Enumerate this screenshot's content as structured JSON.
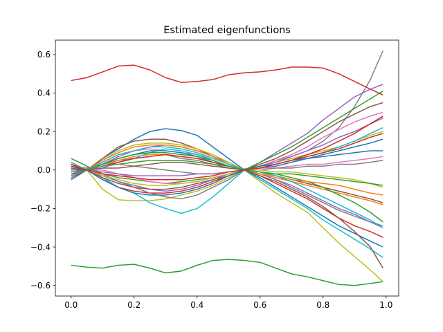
{
  "chart_data": {
    "type": "line",
    "title": "Estimated eigenfunctions",
    "xlabel": "",
    "ylabel": "",
    "xlim": [
      -0.05,
      1.04
    ],
    "ylim": [
      -0.655,
      0.675
    ],
    "xticks": [
      "0.0",
      "0.2",
      "0.4",
      "0.6",
      "0.8",
      "1.0"
    ],
    "xtick_values": [
      0.0,
      0.2,
      0.4,
      0.6,
      0.8,
      1.0
    ],
    "yticks": [
      "−0.6",
      "−0.4",
      "−0.2",
      "0.0",
      "0.2",
      "0.4",
      "0.6"
    ],
    "ytick_values": [
      -0.6,
      -0.4,
      -0.2,
      0.0,
      0.2,
      0.4,
      0.6
    ],
    "grid": false,
    "legend": "none",
    "x": [
      0.0,
      0.05,
      0.1,
      0.15,
      0.2,
      0.25,
      0.3,
      0.35,
      0.4,
      0.45,
      0.5,
      0.55,
      0.6,
      0.65,
      0.7,
      0.75,
      0.8,
      0.85,
      0.9,
      0.95,
      0.99
    ],
    "palette": [
      "#1f77b4",
      "#ff7f0e",
      "#2ca02c",
      "#d62728",
      "#9467bd",
      "#8c564b",
      "#e377c2",
      "#7f7f7f",
      "#bcbd22",
      "#17becf"
    ],
    "series": [
      {
        "color": "#d62728",
        "values": [
          0.465,
          0.48,
          0.51,
          0.54,
          0.545,
          0.52,
          0.48,
          0.455,
          0.46,
          0.47,
          0.495,
          0.505,
          0.51,
          0.52,
          0.535,
          0.535,
          0.53,
          0.5,
          0.46,
          0.42,
          0.39
        ]
      },
      {
        "color": "#2ca02c",
        "values": [
          -0.495,
          -0.505,
          -0.51,
          -0.495,
          -0.49,
          -0.51,
          -0.535,
          -0.525,
          -0.495,
          -0.47,
          -0.465,
          -0.47,
          -0.48,
          -0.51,
          -0.54,
          -0.555,
          -0.575,
          -0.595,
          -0.6,
          -0.59,
          -0.58
        ]
      },
      {
        "color": "#7f7f7f",
        "values": [
          0.02,
          0.01,
          0.03,
          0.05,
          0.06,
          0.07,
          0.08,
          0.06,
          0.05,
          0.03,
          0.02,
          0.005,
          0.02,
          0.05,
          0.07,
          0.1,
          0.15,
          0.22,
          0.33,
          0.47,
          0.62
        ]
      },
      {
        "color": "#9467bd",
        "values": [
          -0.01,
          0.0,
          0.03,
          0.07,
          0.1,
          0.12,
          0.13,
          0.12,
          0.1,
          0.07,
          0.04,
          0.0,
          0.04,
          0.09,
          0.14,
          0.19,
          0.26,
          0.32,
          0.38,
          0.42,
          0.445
        ]
      },
      {
        "color": "#bcbd22",
        "values": [
          0.02,
          0.0,
          -0.1,
          -0.155,
          -0.16,
          -0.16,
          -0.15,
          -0.13,
          -0.11,
          -0.08,
          -0.04,
          0.0,
          -0.06,
          -0.12,
          -0.17,
          -0.22,
          -0.3,
          -0.38,
          -0.45,
          -0.52,
          -0.58
        ]
      },
      {
        "color": "#17becf",
        "values": [
          -0.03,
          0.01,
          -0.04,
          -0.09,
          -0.12,
          -0.17,
          -0.2,
          -0.225,
          -0.2,
          -0.14,
          -0.07,
          0.0,
          -0.05,
          -0.1,
          -0.15,
          -0.2,
          -0.26,
          -0.31,
          -0.36,
          -0.41,
          -0.455
        ]
      },
      {
        "color": "#1f77b4",
        "values": [
          -0.05,
          0.0,
          0.06,
          0.11,
          0.16,
          0.2,
          0.215,
          0.205,
          0.18,
          0.12,
          0.06,
          0.0,
          -0.04,
          -0.09,
          -0.14,
          -0.19,
          -0.24,
          -0.29,
          -0.33,
          -0.37,
          -0.4
        ]
      },
      {
        "color": "#8c564b",
        "values": [
          0.03,
          0.0,
          0.06,
          0.12,
          0.15,
          0.16,
          0.16,
          0.14,
          0.11,
          0.07,
          0.03,
          0.0,
          0.03,
          0.06,
          0.1,
          0.15,
          0.2,
          0.25,
          0.29,
          0.33,
          0.35
        ]
      },
      {
        "color": "#2ca02c",
        "values": [
          0.06,
          0.02,
          -0.02,
          -0.04,
          -0.05,
          -0.06,
          -0.07,
          -0.06,
          -0.05,
          -0.04,
          -0.02,
          0.0,
          0.04,
          0.08,
          0.12,
          0.17,
          0.22,
          0.27,
          0.32,
          0.37,
          0.41
        ]
      },
      {
        "color": "#d62728",
        "values": [
          -0.02,
          0.0,
          -0.05,
          -0.09,
          -0.11,
          -0.12,
          -0.12,
          -0.11,
          -0.09,
          -0.06,
          -0.03,
          0.0,
          -0.03,
          -0.07,
          -0.11,
          -0.15,
          -0.2,
          -0.25,
          -0.29,
          -0.32,
          -0.35
        ]
      },
      {
        "color": "#e377c2",
        "values": [
          0.01,
          0.0,
          0.04,
          0.08,
          0.1,
          0.11,
          0.1,
          0.09,
          0.08,
          0.06,
          0.03,
          0.0,
          0.02,
          0.05,
          0.08,
          0.12,
          0.17,
          0.21,
          0.25,
          0.28,
          0.3
        ]
      },
      {
        "color": "#ff7f0e",
        "values": [
          -0.03,
          0.0,
          0.02,
          0.05,
          0.07,
          0.08,
          0.08,
          0.07,
          0.06,
          0.04,
          0.02,
          0.0,
          -0.02,
          -0.04,
          -0.06,
          -0.08,
          -0.1,
          -0.12,
          -0.14,
          -0.16,
          -0.18
        ]
      },
      {
        "color": "#7f7f7f",
        "values": [
          0.0,
          0.0,
          -0.02,
          -0.06,
          -0.09,
          -0.12,
          -0.14,
          -0.15,
          -0.13,
          -0.09,
          -0.05,
          0.0,
          -0.02,
          -0.05,
          -0.09,
          -0.13,
          -0.17,
          -0.21,
          -0.24,
          -0.27,
          -0.29
        ]
      },
      {
        "color": "#bcbd22",
        "values": [
          0.04,
          0.0,
          0.05,
          0.1,
          0.13,
          0.14,
          0.14,
          0.13,
          0.11,
          0.08,
          0.04,
          0.0,
          0.02,
          0.04,
          0.06,
          0.08,
          0.1,
          0.12,
          0.15,
          0.18,
          0.2
        ]
      },
      {
        "color": "#17becf",
        "values": [
          -0.01,
          0.0,
          0.01,
          0.04,
          0.06,
          0.09,
          0.11,
          0.1,
          0.08,
          0.05,
          0.02,
          0.0,
          0.01,
          0.03,
          0.05,
          0.07,
          0.09,
          0.12,
          0.15,
          0.19,
          0.22
        ]
      },
      {
        "color": "#9467bd",
        "values": [
          0.02,
          0.0,
          -0.03,
          -0.06,
          -0.08,
          -0.1,
          -0.11,
          -0.1,
          -0.08,
          -0.05,
          -0.03,
          0.0,
          -0.02,
          -0.05,
          -0.08,
          -0.12,
          -0.16,
          -0.2,
          -0.23,
          -0.27,
          -0.3
        ]
      },
      {
        "color": "#1f77b4",
        "values": [
          0.0,
          0.0,
          0.03,
          0.06,
          0.08,
          0.1,
          0.1,
          0.09,
          0.07,
          0.04,
          0.02,
          0.0,
          0.01,
          0.02,
          0.04,
          0.06,
          0.08,
          0.1,
          0.12,
          0.14,
          0.16
        ]
      },
      {
        "color": "#8c564b",
        "values": [
          -0.04,
          0.0,
          -0.04,
          -0.07,
          -0.09,
          -0.1,
          -0.1,
          -0.09,
          -0.07,
          -0.05,
          -0.02,
          0.0,
          -0.01,
          -0.03,
          -0.05,
          -0.07,
          -0.09,
          -0.11,
          -0.13,
          -0.15,
          -0.17
        ]
      },
      {
        "color": "#2ca02c",
        "values": [
          0.01,
          0.0,
          0.02,
          0.03,
          0.04,
          0.05,
          0.05,
          0.05,
          0.04,
          0.03,
          0.01,
          0.0,
          -0.01,
          -0.02,
          -0.04,
          -0.06,
          -0.09,
          -0.13,
          -0.17,
          -0.22,
          -0.27
        ]
      },
      {
        "color": "#d62728",
        "values": [
          0.03,
          0.0,
          0.02,
          0.04,
          0.06,
          0.07,
          0.08,
          0.07,
          0.06,
          0.04,
          0.02,
          0.0,
          0.01,
          0.03,
          0.05,
          0.07,
          0.09,
          0.11,
          0.14,
          0.17,
          0.19
        ]
      },
      {
        "color": "#e377c2",
        "values": [
          -0.02,
          0.0,
          0.0,
          -0.02,
          -0.04,
          -0.06,
          -0.07,
          -0.07,
          -0.06,
          -0.04,
          -0.02,
          0.0,
          0.01,
          0.01,
          0.02,
          0.03,
          0.03,
          0.04,
          0.05,
          0.06,
          0.07
        ]
      },
      {
        "color": "#ff7f0e",
        "values": [
          0.02,
          0.0,
          0.05,
          0.09,
          0.12,
          0.13,
          0.13,
          0.12,
          0.1,
          0.07,
          0.03,
          0.0,
          -0.02,
          -0.03,
          -0.05,
          -0.06,
          -0.07,
          -0.08,
          -0.1,
          -0.12,
          -0.13
        ]
      },
      {
        "color": "#7f7f7f",
        "values": [
          -0.01,
          0.0,
          0.02,
          0.03,
          0.02,
          0.01,
          0.0,
          -0.01,
          -0.02,
          -0.02,
          -0.01,
          0.0,
          0.0,
          0.01,
          0.01,
          0.02,
          0.02,
          0.03,
          0.03,
          0.04,
          0.05
        ]
      },
      {
        "color": "#bcbd22",
        "values": [
          0.0,
          0.0,
          -0.03,
          -0.05,
          -0.07,
          -0.08,
          -0.08,
          -0.07,
          -0.06,
          -0.04,
          -0.02,
          0.0,
          0.0,
          -0.01,
          -0.01,
          -0.02,
          -0.03,
          -0.04,
          -0.05,
          -0.07,
          -0.09
        ]
      },
      {
        "color": "#17becf",
        "values": [
          0.04,
          0.0,
          0.04,
          0.08,
          0.1,
          0.12,
          0.12,
          0.11,
          0.09,
          0.06,
          0.03,
          0.0,
          -0.01,
          -0.03,
          -0.06,
          -0.1,
          -0.14,
          -0.18,
          -0.22,
          -0.26,
          -0.3
        ]
      },
      {
        "color": "#9467bd",
        "values": [
          -0.03,
          0.0,
          -0.01,
          -0.02,
          -0.03,
          -0.03,
          -0.03,
          -0.03,
          -0.02,
          -0.02,
          -0.01,
          0.0,
          0.02,
          0.04,
          0.07,
          0.1,
          0.13,
          0.17,
          0.2,
          0.24,
          0.27
        ]
      },
      {
        "color": "#1f77b4",
        "values": [
          0.01,
          0.0,
          -0.05,
          -0.09,
          -0.12,
          -0.13,
          -0.13,
          -0.12,
          -0.1,
          -0.07,
          -0.03,
          0.0,
          0.02,
          0.03,
          0.05,
          0.06,
          0.07,
          0.08,
          0.09,
          0.1,
          0.1
        ]
      },
      {
        "color": "#8c564b",
        "values": [
          0.0,
          0.0,
          0.01,
          0.01,
          0.02,
          0.03,
          0.04,
          0.04,
          0.03,
          0.02,
          0.01,
          0.0,
          -0.03,
          -0.06,
          -0.1,
          -0.14,
          -0.19,
          -0.25,
          -0.32,
          -0.4,
          -0.51
        ]
      },
      {
        "color": "#2ca02c",
        "values": [
          -0.02,
          0.0,
          0.03,
          0.06,
          0.08,
          0.09,
          0.09,
          0.08,
          0.07,
          0.05,
          0.02,
          0.0,
          -0.01,
          -0.02,
          -0.02,
          -0.03,
          -0.04,
          -0.05,
          -0.06,
          -0.07,
          -0.08
        ]
      },
      {
        "color": "#d62728",
        "values": [
          0.02,
          0.0,
          -0.02,
          -0.03,
          -0.04,
          -0.05,
          -0.05,
          -0.05,
          -0.04,
          -0.03,
          -0.01,
          0.0,
          0.01,
          0.03,
          0.05,
          0.08,
          0.11,
          0.15,
          0.19,
          0.24,
          0.28
        ]
      }
    ]
  }
}
